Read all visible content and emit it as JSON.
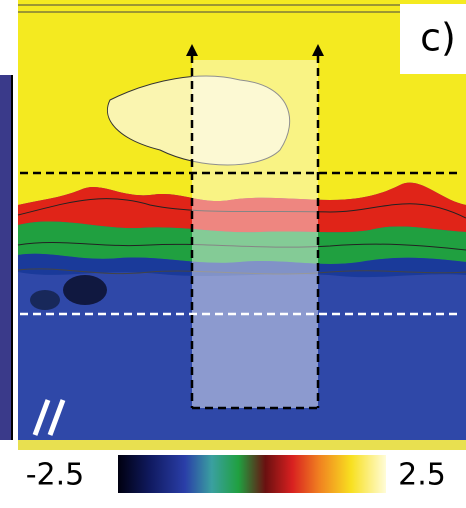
{
  "panel_label": "c)",
  "colorbar": {
    "min": -2.5,
    "max": 2.5
  }
}
